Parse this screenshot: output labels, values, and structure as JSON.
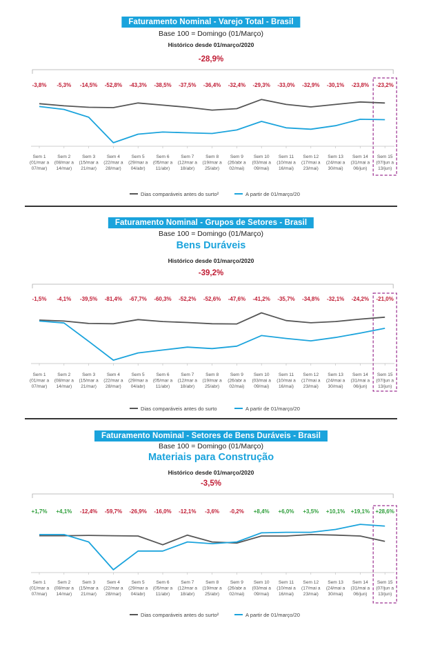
{
  "colors": {
    "accent": "#1aa3dc",
    "dark_line": "#555555",
    "negative": "#c01c34",
    "positive": "#2e9e3a",
    "highlight_box": "#9b2f8f"
  },
  "chart_data": [
    {
      "type": "line",
      "title": "Faturamento Nominal - Varejo Total - Brasil",
      "base_note": "Base 100 = Domingo (01/Março)",
      "subtitle": "",
      "history_note": "Histórico desde 01/março/2020",
      "total_change": "-28,9%",
      "categories": [
        [
          "Sem 1",
          "(01/mar a",
          "07/mar)"
        ],
        [
          "Sem 2",
          "(08/mar a",
          "14/mar)"
        ],
        [
          "Sem 3",
          "(15/mar a",
          "21/mar)"
        ],
        [
          "Sem 4",
          "(22/mar a",
          "28/mar)"
        ],
        [
          "Sem 5",
          "(29/mar a",
          "04/abr)"
        ],
        [
          "Sem 6",
          "(05/mar a",
          "11/abr)"
        ],
        [
          "Sem 7",
          "(12/mar a",
          "18/abr)"
        ],
        [
          "Sem 8",
          "(19/mar a",
          "25/abr)"
        ],
        [
          "Sem 9",
          "(26/abr a",
          "02/mai)"
        ],
        [
          "Sem 10",
          "(03/mai a",
          "09/mai)"
        ],
        [
          "Sem 11",
          "(10/mai a",
          "16/mai)"
        ],
        [
          "Sem 12",
          "(17/mai a",
          "23/mai)"
        ],
        [
          "Sem 13",
          "(24/mai a",
          "30/mai)"
        ],
        [
          "Sem 14",
          "(31/mai a",
          "06/jun)"
        ],
        [
          "Sem 15",
          "(07/jun a",
          "13/jun)"
        ]
      ],
      "changes": [
        "-3,8%",
        "-5,3%",
        "-14,5%",
        "-52,8%",
        "-43,3%",
        "-38,5%",
        "-37,5%",
        "-36,4%",
        "-32,4%",
        "-29,3%",
        "-33,0%",
        "-32,9%",
        "-30,1%",
        "-23,8%",
        "-23,2%"
      ],
      "series": [
        {
          "name": "Dias comparáveis antes do surto²",
          "color": "#555555",
          "values": [
            100,
            97,
            95,
            94.5,
            101,
            98,
            95,
            91,
            93,
            106,
            99,
            95.5,
            99,
            102.5,
            101
          ]
        },
        {
          "name": "A partir de 01/março/20",
          "color": "#1aa3dc",
          "values": [
            96,
            92,
            81,
            45,
            57,
            60,
            59,
            58,
            63,
            75,
            66,
            64,
            69,
            78,
            77.5
          ]
        }
      ],
      "ylim": [
        40,
        112
      ]
    },
    {
      "type": "line",
      "title": "Faturamento Nominal - Grupos de Setores - Brasil",
      "base_note": "Base 100 = Domingo (01/Março)",
      "subtitle": "Bens Duráveis",
      "history_note": "Histórico desde 01/março/2020",
      "total_change": "-39,2%",
      "categories": [
        [
          "Sem 1",
          "(01/mar a",
          "07/mar)"
        ],
        [
          "Sem 2",
          "(08/mar a",
          "14/mar)"
        ],
        [
          "Sem 3",
          "(15/mar a",
          "21/mar)"
        ],
        [
          "Sem 4",
          "(22/mar a",
          "28/mar)"
        ],
        [
          "Sem 5",
          "(29/mar a",
          "04/abr)"
        ],
        [
          "Sem 6",
          "(05/mar a",
          "11/abr)"
        ],
        [
          "Sem 7",
          "(12/mar a",
          "18/abr)"
        ],
        [
          "Sem 8",
          "(19/mar a",
          "25/abr)"
        ],
        [
          "Sem 9",
          "(26/abr a",
          "02/mai)"
        ],
        [
          "Sem 10",
          "(03/mai a",
          "09/mai)"
        ],
        [
          "Sem 11",
          "(10/mai a",
          "16/mai)"
        ],
        [
          "Sem 12",
          "(17/mai a",
          "23/mai)"
        ],
        [
          "Sem 13",
          "(24/mai a",
          "30/mai)"
        ],
        [
          "Sem 14",
          "(31/mai a",
          "06/jun)"
        ],
        [
          "Sem 15",
          "(07/jun a",
          "13/jun)"
        ]
      ],
      "changes": [
        "-1,5%",
        "-4,1%",
        "-39,5%",
        "-81,4%",
        "-67,7%",
        "-60,3%",
        "-52,2%",
        "-52,6%",
        "-47,6%",
        "-41,2%",
        "-35,7%",
        "-34,8%",
        "-32,1%",
        "-24,2%",
        "-21,0%"
      ],
      "series": [
        {
          "name": "Dias comparáveis antes do surto",
          "color": "#555555",
          "values": [
            100,
            98,
            93,
            92.5,
            101,
            97,
            95,
            92.5,
            92,
            115,
            99,
            94.5,
            97,
            102,
            106
          ]
        },
        {
          "name": "A partir de 01/março/20",
          "color": "#1aa3dc",
          "values": [
            98,
            94,
            56,
            17,
            32,
            38,
            44,
            41,
            46,
            68,
            62,
            57,
            64,
            73,
            83
          ]
        }
      ],
      "ylim": [
        10,
        120
      ]
    },
    {
      "type": "line",
      "title": "Faturamento Nominal - Setores de Bens Duráveis - Brasil",
      "base_note": "Base 100 = Domingo (01/Março)",
      "subtitle": "Materiais para Construção",
      "history_note": "Histórico desde 01/março/2020",
      "total_change": "-3,5%",
      "categories": [
        [
          "Sem 1",
          "(01/mar a",
          "07/mar)"
        ],
        [
          "Sem 2",
          "(08/mar a",
          "14/mar)"
        ],
        [
          "Sem 3",
          "(15/mar a",
          "21/mar)"
        ],
        [
          "Sem 4",
          "(22/mar a",
          "28/mar)"
        ],
        [
          "Sem 5",
          "(29/mar a",
          "04/abr)"
        ],
        [
          "Sem 6",
          "(05/mar a",
          "11/abr)"
        ],
        [
          "Sem 7",
          "(12/mar a",
          "18/abr)"
        ],
        [
          "Sem 8",
          "(19/mar a",
          "25/abr)"
        ],
        [
          "Sem 9",
          "(26/abr a",
          "02/mai)"
        ],
        [
          "Sem 10",
          "(03/mai a",
          "09/mai)"
        ],
        [
          "Sem 11",
          "(10/mai a",
          "16/mai)"
        ],
        [
          "Sem 12",
          "(17/mai a",
          "23/mai)"
        ],
        [
          "Sem 13",
          "(24/mai a",
          "30/mai)"
        ],
        [
          "Sem 14",
          "(31/mai a",
          "06/jun)"
        ],
        [
          "Sem 15",
          "(07/jun a",
          "13/jun)"
        ]
      ],
      "changes": [
        "+1,7%",
        "+4,1%",
        "-12,4%",
        "-59,7%",
        "-26,9%",
        "-16,0%",
        "-12,1%",
        "-3,6%",
        "-0,2%",
        "+8,4%",
        "+6,0%",
        "+3,5%",
        "+10,1%",
        "+19,1%",
        "+28,6%"
      ],
      "series": [
        {
          "name": "Dias comparáveis antes do surto²",
          "color": "#555555",
          "values": [
            100,
            100,
            100.5,
            100,
            99.5,
            84,
            101,
            89,
            87,
            99.5,
            99.5,
            102,
            101,
            99.5,
            90
          ]
        },
        {
          "name": "A partir de 01/março/20",
          "color": "#1aa3dc",
          "values": [
            102,
            102,
            89,
            40,
            73,
            73,
            89,
            86,
            89,
            105,
            106,
            106,
            111,
            120,
            117
          ]
        }
      ],
      "ylim": [
        35,
        125
      ]
    }
  ]
}
